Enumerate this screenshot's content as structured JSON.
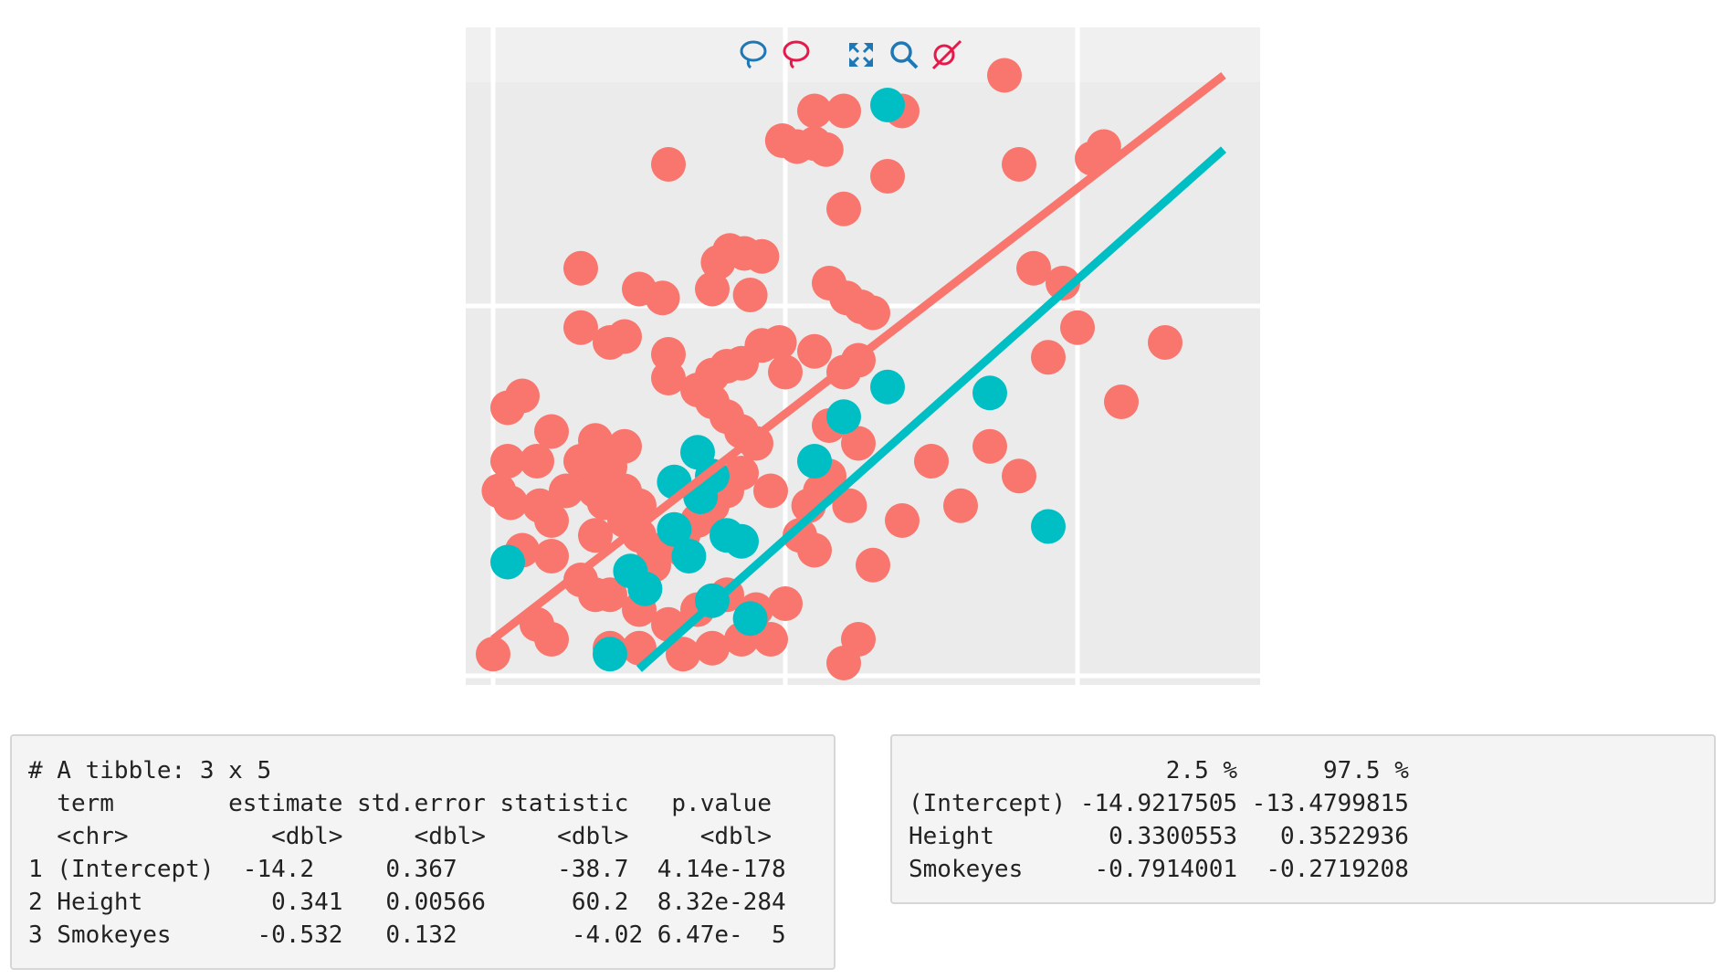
{
  "plot": {
    "colors": {
      "panel": "#ebebeb",
      "grid": "#ffffff",
      "series_no": "#f8766d",
      "series_yes": "#00bfc4"
    },
    "modebar": {
      "icons": [
        {
          "name": "lasso-select-icon",
          "color": "#1f77b4"
        },
        {
          "name": "lasso-deselect-icon",
          "color": "#e6194b"
        },
        {
          "name": "autoscale-icon",
          "color": "#1f77b4"
        },
        {
          "name": "zoom-icon",
          "color": "#1f77b4"
        },
        {
          "name": "reset-selection-icon",
          "color": "#e6194b"
        }
      ]
    }
  },
  "chart_data": {
    "type": "scatter",
    "xlim": [
      -0.1,
      2.6
    ],
    "ylim": [
      -0.2,
      2.1
    ],
    "series": [
      {
        "color": "#f8766d",
        "line": [
          [
            0,
            0
          ],
          [
            2.5,
            1.9
          ]
        ],
        "points": [
          [
            0.6,
            1.6
          ],
          [
            1.1,
            1.78
          ],
          [
            1.2,
            1.78
          ],
          [
            1.4,
            1.78
          ],
          [
            1.75,
            1.9
          ],
          [
            1.8,
            1.6
          ],
          [
            0.99,
            1.68
          ],
          [
            1.04,
            1.66
          ],
          [
            1.1,
            1.67
          ],
          [
            1.14,
            1.65
          ],
          [
            1.2,
            1.45
          ],
          [
            1.35,
            1.56
          ],
          [
            2.05,
            1.62
          ],
          [
            2.09,
            1.66
          ],
          [
            0.77,
            1.27
          ],
          [
            0.81,
            1.31
          ],
          [
            0.86,
            1.3
          ],
          [
            0.92,
            1.29
          ],
          [
            0.3,
            1.25
          ],
          [
            0.5,
            1.18
          ],
          [
            0.58,
            1.15
          ],
          [
            0.75,
            1.18
          ],
          [
            0.88,
            1.16
          ],
          [
            1.15,
            1.2
          ],
          [
            1.21,
            1.15
          ],
          [
            1.26,
            1.12
          ],
          [
            1.3,
            1.1
          ],
          [
            0.3,
            1.05
          ],
          [
            0.4,
            1.0
          ],
          [
            0.45,
            1.02
          ],
          [
            0.6,
            0.96
          ],
          [
            0.75,
            0.89
          ],
          [
            0.8,
            0.92
          ],
          [
            0.85,
            0.93
          ],
          [
            0.92,
            0.99
          ],
          [
            0.98,
            1.0
          ],
          [
            1.1,
            0.97
          ],
          [
            1.2,
            0.9
          ],
          [
            1.25,
            0.94
          ],
          [
            1.0,
            0.9
          ],
          [
            0.6,
            0.88
          ],
          [
            0.7,
            0.84
          ],
          [
            0.75,
            0.8
          ],
          [
            0.8,
            0.75
          ],
          [
            0.1,
            0.82
          ],
          [
            0.05,
            0.78
          ],
          [
            0.2,
            0.7
          ],
          [
            0.35,
            0.67
          ],
          [
            0.45,
            0.65
          ],
          [
            0.85,
            0.7
          ],
          [
            0.9,
            0.66
          ],
          [
            1.15,
            0.72
          ],
          [
            1.25,
            0.66
          ],
          [
            0.05,
            0.6
          ],
          [
            0.15,
            0.6
          ],
          [
            0.3,
            0.6
          ],
          [
            0.35,
            0.55
          ],
          [
            0.4,
            0.58
          ],
          [
            0.45,
            0.5
          ],
          [
            0.5,
            0.45
          ],
          [
            0.35,
            0.5
          ],
          [
            0.25,
            0.5
          ],
          [
            0.38,
            0.46
          ],
          [
            0.02,
            0.5
          ],
          [
            0.06,
            0.46
          ],
          [
            0.16,
            0.45
          ],
          [
            0.2,
            0.4
          ],
          [
            0.35,
            0.35
          ],
          [
            0.45,
            0.4
          ],
          [
            0.5,
            0.35
          ],
          [
            0.55,
            0.3
          ],
          [
            0.65,
            0.35
          ],
          [
            0.7,
            0.4
          ],
          [
            0.8,
            0.5
          ],
          [
            0.85,
            0.56
          ],
          [
            0.95,
            0.5
          ],
          [
            1.08,
            0.45
          ],
          [
            1.12,
            0.5
          ],
          [
            1.15,
            0.55
          ],
          [
            1.22,
            0.45
          ],
          [
            1.4,
            0.4
          ],
          [
            1.5,
            0.6
          ],
          [
            1.6,
            0.45
          ],
          [
            1.7,
            0.65
          ],
          [
            1.8,
            0.55
          ],
          [
            1.9,
            0.95
          ],
          [
            2.0,
            1.05
          ],
          [
            2.15,
            0.8
          ],
          [
            1.95,
            1.2
          ],
          [
            1.85,
            1.25
          ],
          [
            2.3,
            1.0
          ],
          [
            0.4,
            0.15
          ],
          [
            0.55,
            0.25
          ],
          [
            0.65,
            0.3
          ],
          [
            0.75,
            0.45
          ],
          [
            0.1,
            0.3
          ],
          [
            0.2,
            0.28
          ],
          [
            0.3,
            0.2
          ],
          [
            0.35,
            0.15
          ],
          [
            0.5,
            0.1
          ],
          [
            0.6,
            0.05
          ],
          [
            0.7,
            0.1
          ],
          [
            0.8,
            0.15
          ],
          [
            0.9,
            0.1
          ],
          [
            1.0,
            0.12
          ],
          [
            1.25,
            0.0
          ],
          [
            1.3,
            0.25
          ],
          [
            1.1,
            0.3
          ],
          [
            1.05,
            0.35
          ],
          [
            0.15,
            0.05
          ],
          [
            0.2,
            0.0
          ],
          [
            0.4,
            -0.03
          ],
          [
            0.5,
            -0.03
          ],
          [
            0.65,
            -0.05
          ],
          [
            0.75,
            -0.03
          ],
          [
            0.85,
            0.0
          ],
          [
            0.95,
            0.0
          ],
          [
            1.2,
            -0.08
          ],
          [
            0.0,
            -0.05
          ]
        ]
      },
      {
        "color": "#00bfc4",
        "line": [
          [
            0.5,
            -0.1
          ],
          [
            2.5,
            1.65
          ]
        ],
        "points": [
          [
            1.35,
            1.8
          ],
          [
            1.35,
            0.85
          ],
          [
            1.7,
            0.83
          ],
          [
            1.2,
            0.75
          ],
          [
            1.1,
            0.6
          ],
          [
            0.7,
            0.63
          ],
          [
            0.62,
            0.53
          ],
          [
            0.75,
            0.55
          ],
          [
            0.71,
            0.48
          ],
          [
            0.62,
            0.37
          ],
          [
            0.8,
            0.35
          ],
          [
            0.85,
            0.33
          ],
          [
            1.9,
            0.38
          ],
          [
            0.05,
            0.26
          ],
          [
            0.67,
            0.28
          ],
          [
            0.52,
            0.17
          ],
          [
            0.47,
            0.23
          ],
          [
            0.75,
            0.13
          ],
          [
            0.88,
            0.07
          ],
          [
            0.4,
            -0.05
          ]
        ]
      }
    ]
  },
  "tidy_output": {
    "lines": [
      "# A tibble: 3 x 5",
      "  term        estimate std.error statistic   p.value",
      "  <chr>          <dbl>     <dbl>     <dbl>     <dbl>",
      "1 (Intercept)  -14.2     0.367       -38.7  4.14e-178",
      "2 Height         0.341   0.00566      60.2  8.32e-284",
      "3 Smokeyes      -0.532   0.132        -4.02 6.47e-  5"
    ]
  },
  "confint_output": {
    "lines": [
      "                  2.5 %      97.5 %",
      "(Intercept) -14.9217505 -13.4799815",
      "Height        0.3300553   0.3522936",
      "Smokeyes     -0.7914001  -0.2719208"
    ]
  }
}
